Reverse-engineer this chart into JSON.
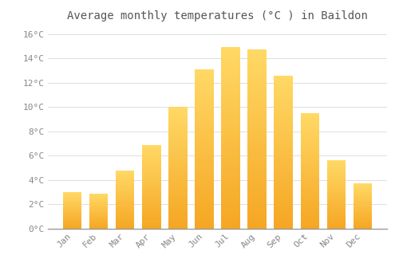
{
  "title": "Average monthly temperatures (°C ) in Baildon",
  "months": [
    "Jan",
    "Feb",
    "Mar",
    "Apr",
    "May",
    "Jun",
    "Jul",
    "Aug",
    "Sep",
    "Oct",
    "Nov",
    "Dec"
  ],
  "values": [
    3.0,
    2.9,
    4.8,
    6.9,
    10.0,
    13.1,
    14.9,
    14.7,
    12.6,
    9.5,
    5.6,
    3.7
  ],
  "bar_color_bottom": "#F5A623",
  "bar_color_top": "#FFD966",
  "background_color": "#FFFFFF",
  "grid_color": "#DDDDDD",
  "ylim": [
    0,
    16.5
  ],
  "yticks": [
    0,
    2,
    4,
    6,
    8,
    10,
    12,
    14,
    16
  ],
  "ytick_labels": [
    "0°C",
    "2°C",
    "4°C",
    "6°C",
    "8°C",
    "10°C",
    "12°C",
    "14°C",
    "16°C"
  ],
  "title_fontsize": 10,
  "tick_fontsize": 8,
  "bar_width": 0.7
}
